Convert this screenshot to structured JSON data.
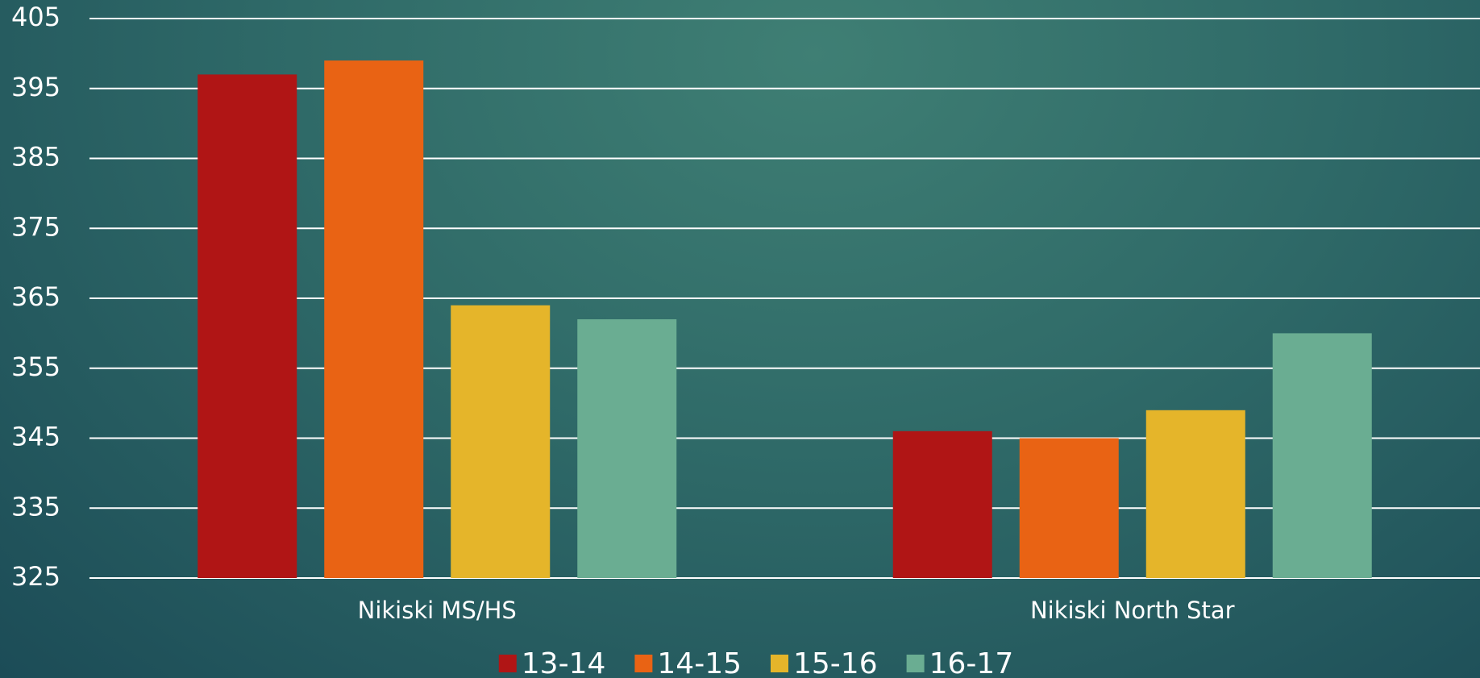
{
  "chart_data": {
    "type": "bar",
    "categories": [
      "Nikiski MS/HS",
      "Nikiski North Star"
    ],
    "series": [
      {
        "name": "13-14",
        "color": "#b01515",
        "values": [
          397,
          346
        ]
      },
      {
        "name": "14-15",
        "color": "#e96314",
        "values": [
          399,
          345
        ]
      },
      {
        "name": "15-16",
        "color": "#e5b52a",
        "values": [
          364,
          349
        ]
      },
      {
        "name": "16-17",
        "color": "#6aad92",
        "values": [
          362,
          360
        ]
      }
    ],
    "ylim": [
      325,
      405
    ],
    "yticks": [
      325,
      335,
      345,
      355,
      365,
      375,
      385,
      395,
      405
    ],
    "grid": true,
    "legend": "bottom"
  }
}
